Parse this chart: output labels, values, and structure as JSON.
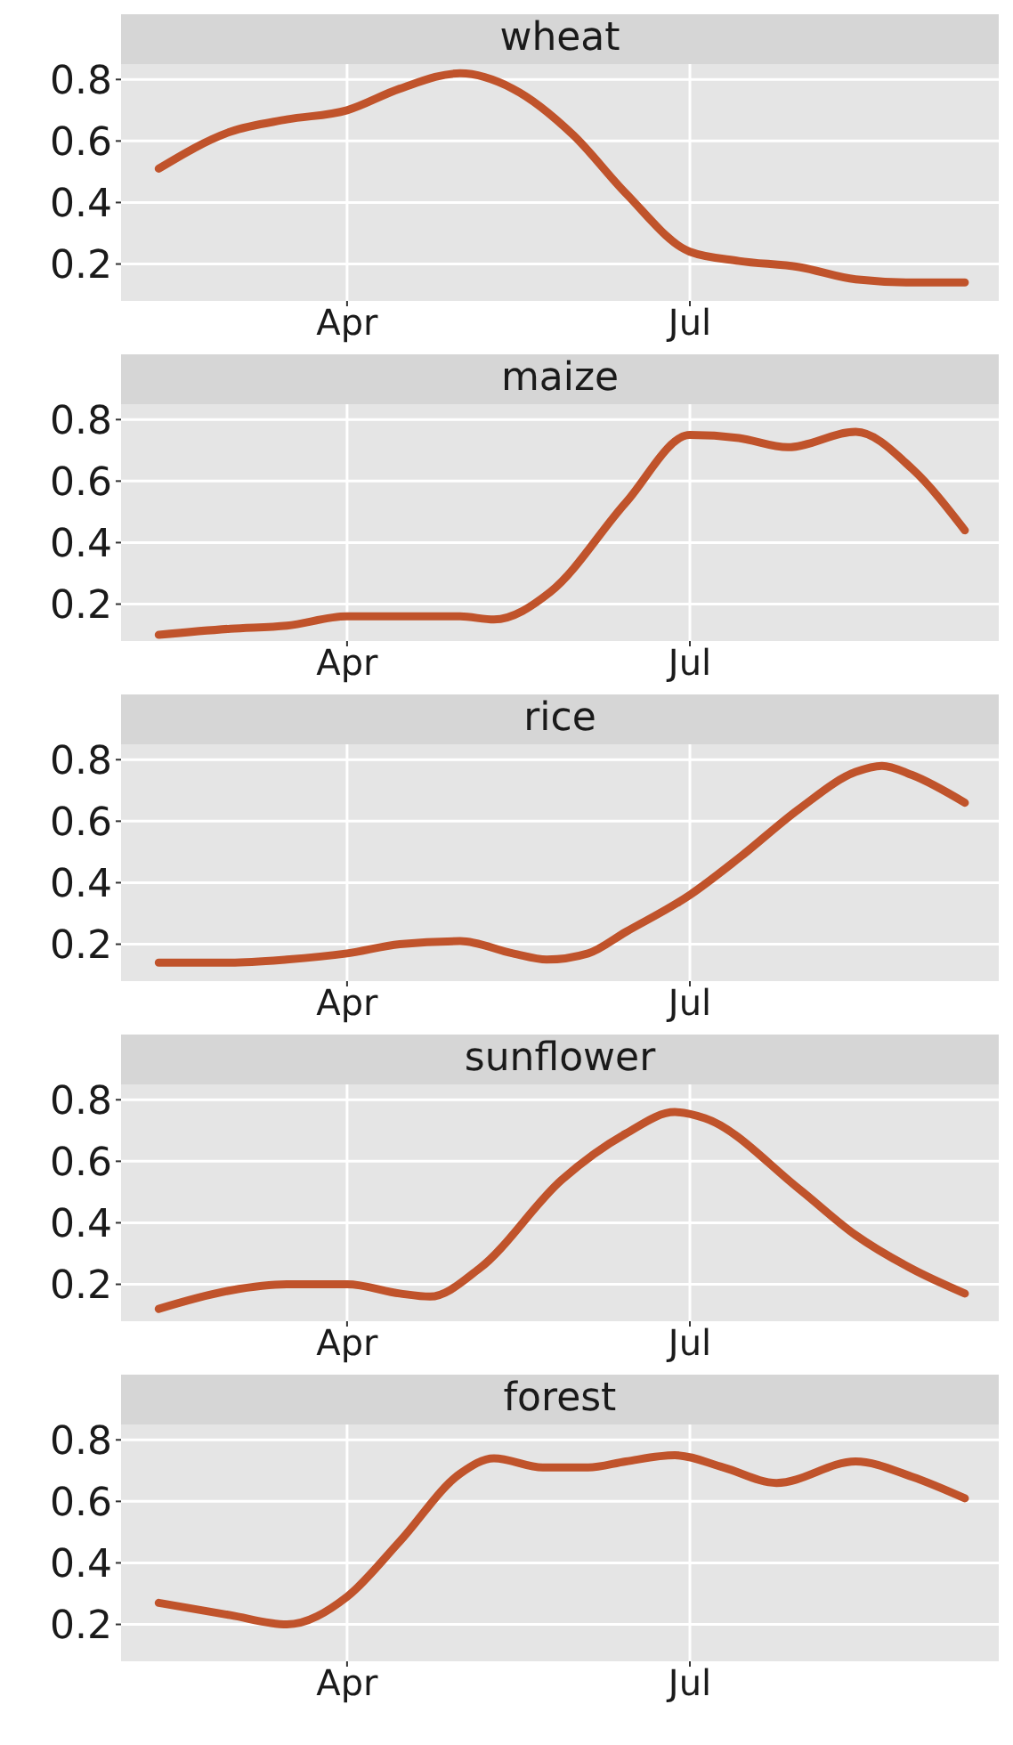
{
  "chart_data": [
    {
      "type": "line",
      "title": "wheat",
      "x": [
        "--02-10",
        "--03-01",
        "--03-16",
        "--04-01",
        "--04-15",
        "--05-01",
        "--05-15",
        "--05-31",
        "--06-14",
        "--07-01",
        "--07-14",
        "--07-30",
        "--08-14",
        "--08-29",
        "--09-12"
      ],
      "values": [
        0.51,
        0.63,
        0.67,
        0.7,
        0.77,
        0.82,
        0.77,
        0.62,
        0.43,
        0.24,
        0.21,
        0.19,
        0.15,
        0.14,
        0.14
      ],
      "color": "#c0532b",
      "xlim": [
        "--01-31",
        "--09-21"
      ],
      "xticks": [
        {
          "value": "--04-01",
          "label": "Apr"
        },
        {
          "value": "--07-01",
          "label": "Jul"
        }
      ],
      "ylim": [
        0.08,
        0.85
      ],
      "yticks": [
        0.2,
        0.4,
        0.6,
        0.8
      ],
      "grid": true
    },
    {
      "type": "line",
      "title": "maize",
      "x": [
        "--02-10",
        "--03-01",
        "--03-16",
        "--04-01",
        "--04-15",
        "--05-01",
        "--05-10",
        "--05-25",
        "--06-14",
        "--07-01",
        "--07-14",
        "--07-27",
        "--08-14",
        "--08-29",
        "--09-12"
      ],
      "values": [
        0.1,
        0.12,
        0.13,
        0.16,
        0.16,
        0.16,
        0.15,
        0.24,
        0.53,
        0.75,
        0.74,
        0.71,
        0.76,
        0.64,
        0.44
      ],
      "color": "#c0532b",
      "xlim": [
        "--01-31",
        "--09-21"
      ],
      "xticks": [
        {
          "value": "--04-01",
          "label": "Apr"
        },
        {
          "value": "--07-01",
          "label": "Jul"
        }
      ],
      "ylim": [
        0.08,
        0.85
      ],
      "yticks": [
        0.2,
        0.4,
        0.6,
        0.8
      ],
      "grid": true
    },
    {
      "type": "line",
      "title": "rice",
      "x": [
        "--02-10",
        "--03-01",
        "--03-16",
        "--04-01",
        "--04-15",
        "--05-01",
        "--05-15",
        "--05-24",
        "--06-04",
        "--06-14",
        "--07-01",
        "--07-14",
        "--07-30",
        "--08-14",
        "--08-21",
        "--08-29",
        "--09-12"
      ],
      "values": [
        0.14,
        0.14,
        0.15,
        0.17,
        0.2,
        0.21,
        0.17,
        0.15,
        0.17,
        0.24,
        0.36,
        0.48,
        0.64,
        0.76,
        0.78,
        0.75,
        0.66
      ],
      "color": "#c0532b",
      "xlim": [
        "--01-31",
        "--09-21"
      ],
      "xticks": [
        {
          "value": "--04-01",
          "label": "Apr"
        },
        {
          "value": "--07-01",
          "label": "Jul"
        }
      ],
      "ylim": [
        0.08,
        0.85
      ],
      "yticks": [
        0.2,
        0.4,
        0.6,
        0.8
      ],
      "grid": true
    },
    {
      "type": "line",
      "title": "sunflower",
      "x": [
        "--02-10",
        "--03-01",
        "--03-16",
        "--04-01",
        "--04-15",
        "--04-23",
        "--05-06",
        "--05-28",
        "--06-14",
        "--06-27",
        "--07-05",
        "--07-30",
        "--08-14",
        "--08-29",
        "--09-12"
      ],
      "values": [
        0.12,
        0.18,
        0.2,
        0.2,
        0.17,
        0.16,
        0.25,
        0.54,
        0.69,
        0.76,
        0.74,
        0.51,
        0.36,
        0.25,
        0.17
      ],
      "color": "#c0532b",
      "xlim": [
        "--01-31",
        "--09-21"
      ],
      "xticks": [
        {
          "value": "--04-01",
          "label": "Apr"
        },
        {
          "value": "--07-01",
          "label": "Jul"
        }
      ],
      "ylim": [
        0.08,
        0.85
      ],
      "yticks": [
        0.2,
        0.4,
        0.6,
        0.8
      ],
      "grid": true
    },
    {
      "type": "line",
      "title": "forest",
      "x": [
        "--02-10",
        "--03-01",
        "--03-16",
        "--04-01",
        "--04-15",
        "--05-01",
        "--05-10",
        "--05-23",
        "--06-04",
        "--06-14",
        "--06-27",
        "--07-10",
        "--07-24",
        "--08-14",
        "--08-29",
        "--09-12"
      ],
      "values": [
        0.27,
        0.23,
        0.2,
        0.29,
        0.47,
        0.69,
        0.74,
        0.71,
        0.71,
        0.73,
        0.75,
        0.71,
        0.66,
        0.73,
        0.68,
        0.61
      ],
      "color": "#c0532b",
      "xlim": [
        "--01-31",
        "--09-21"
      ],
      "xticks": [
        {
          "value": "--04-01",
          "label": "Apr"
        },
        {
          "value": "--07-01",
          "label": "Jul"
        }
      ],
      "ylim": [
        0.08,
        0.85
      ],
      "yticks": [
        0.2,
        0.4,
        0.6,
        0.8
      ],
      "grid": true
    }
  ]
}
